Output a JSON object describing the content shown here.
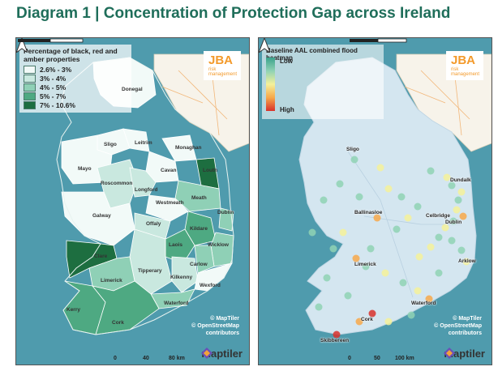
{
  "title": "Diagram 1 | Concentration of Protection Gap across Ireland",
  "left_map": {
    "legend_title": "Percentage of black, red and amber properties",
    "legend": [
      {
        "label": "2.6% - 3%",
        "color": "#f2faf8"
      },
      {
        "label": "3% - 4%",
        "color": "#c9e8df"
      },
      {
        "label": "4% - 5%",
        "color": "#8fd0b6"
      },
      {
        "label": "5% - 7%",
        "color": "#4ea982"
      },
      {
        "label": "7% - 10.6%",
        "color": "#1d6e40"
      }
    ],
    "counties": [
      "Donegal",
      "Sligo",
      "Leitrim",
      "Monaghan",
      "Louth",
      "Mayo",
      "Cavan",
      "Roscommon",
      "Longford",
      "Meath",
      "Westmeath",
      "Dublin",
      "Galway",
      "Offaly",
      "Kildare",
      "Laois",
      "Wicklow",
      "Clare",
      "Carlow",
      "Tipperary",
      "Kilkenny",
      "Limerick",
      "Wexford",
      "Waterford",
      "Kerry",
      "Cork"
    ],
    "scale_labels": [
      "0",
      "40",
      "80 km"
    ]
  },
  "right_map": {
    "legend_title": "Baseline AAL combined flood heatmap",
    "legend_low": "Low",
    "legend_high": "High",
    "places": [
      "Sligo",
      "Dundalk",
      "Ballinasloe",
      "Celbridge",
      "Dublin",
      "Limerick",
      "Arklow",
      "Waterford",
      "Cork",
      "Skibbereen"
    ],
    "scale_labels": [
      "0",
      "50",
      "100 km"
    ]
  },
  "branding": {
    "jba_name": "JBA",
    "jba_sub": "risk management",
    "credit_lines": [
      "© MapTiler",
      "© OpenStreetMap",
      "contributors"
    ],
    "maptiler": "maptiler"
  },
  "colors": {
    "sea": "#4f9bad",
    "land_uk": "#f7f3ea",
    "title": "#1f6e5a",
    "jba": "#f39a2b"
  }
}
